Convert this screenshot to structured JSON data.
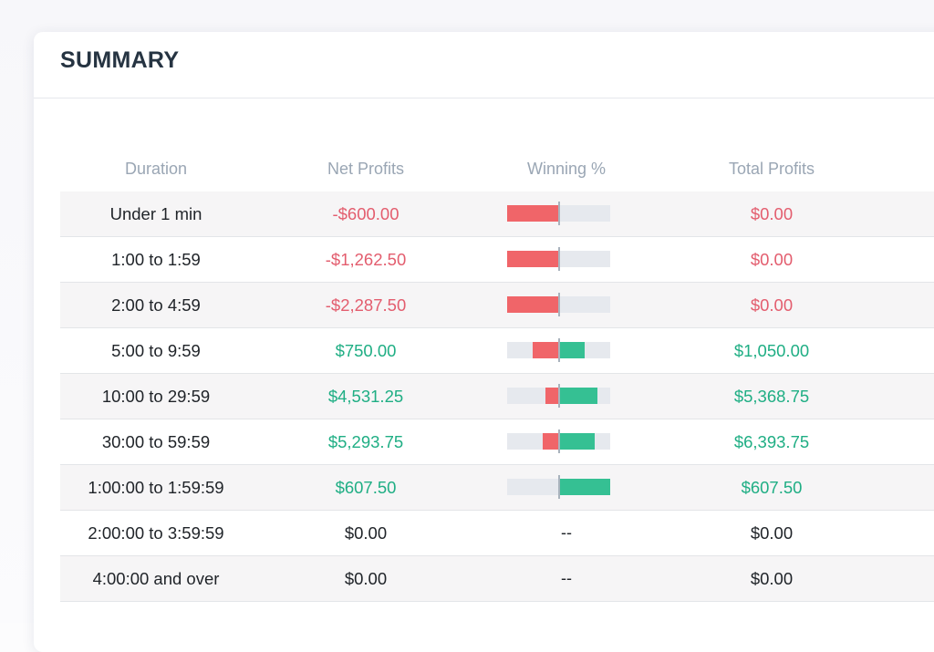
{
  "summary": {
    "title": "SUMMARY",
    "columns": {
      "duration": "Duration",
      "net_profits": "Net Profits",
      "winning_pct": "Winning %",
      "total_profits": "Total Profits"
    },
    "rows": [
      {
        "duration": "Under 1 min",
        "net_profits": "-$600.00",
        "winning": {
          "loss": 1.0,
          "win": 0.0
        },
        "total_profits": "$0.00",
        "net_tone": "neg",
        "total_tone": "neg"
      },
      {
        "duration": "1:00 to 1:59",
        "net_profits": "-$1,262.50",
        "winning": {
          "loss": 1.0,
          "win": 0.0
        },
        "total_profits": "$0.00",
        "net_tone": "neg",
        "total_tone": "neg"
      },
      {
        "duration": "2:00 to 4:59",
        "net_profits": "-$2,287.50",
        "winning": {
          "loss": 1.0,
          "win": 0.0
        },
        "total_profits": "$0.00",
        "net_tone": "neg",
        "total_tone": "neg"
      },
      {
        "duration": "5:00 to 9:59",
        "net_profits": "$750.00",
        "winning": {
          "loss": 0.5,
          "win": 0.5
        },
        "total_profits": "$1,050.00",
        "net_tone": "pos",
        "total_tone": "pos"
      },
      {
        "duration": "10:00 to 29:59",
        "net_profits": "$4,531.25",
        "winning": {
          "loss": 0.25,
          "win": 0.75
        },
        "total_profits": "$5,368.75",
        "net_tone": "pos",
        "total_tone": "pos"
      },
      {
        "duration": "30:00 to 59:59",
        "net_profits": "$5,293.75",
        "winning": {
          "loss": 0.3,
          "win": 0.7
        },
        "total_profits": "$6,393.75",
        "net_tone": "pos",
        "total_tone": "pos"
      },
      {
        "duration": "1:00:00 to 1:59:59",
        "net_profits": "$607.50",
        "winning": {
          "loss": 0.0,
          "win": 1.0
        },
        "total_profits": "$607.50",
        "net_tone": "pos",
        "total_tone": "pos"
      },
      {
        "duration": "2:00:00 to 3:59:59",
        "net_profits": "$0.00",
        "winning": null,
        "winning_text": "--",
        "total_profits": "$0.00",
        "net_tone": "zero",
        "total_tone": "zero"
      },
      {
        "duration": "4:00:00 and over",
        "net_profits": "$0.00",
        "winning": null,
        "winning_text": "--",
        "total_profits": "$0.00",
        "net_tone": "zero",
        "total_tone": "zero"
      }
    ]
  },
  "colors": {
    "negative": "#e35d6e",
    "positive": "#1fae84",
    "loss_bar": "#f06569",
    "win_bar": "#35c093",
    "bar_track": "#e6e9ee"
  }
}
